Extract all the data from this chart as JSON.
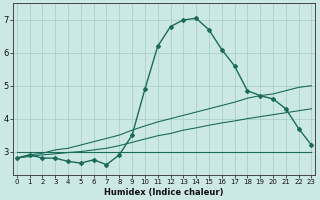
{
  "xlabel": "Humidex (Indice chaleur)",
  "bg_color": "#cce8e4",
  "grid_color": "#aacfcb",
  "line_color": "#1a6b5a",
  "x_ticks": [
    0,
    1,
    2,
    3,
    4,
    5,
    6,
    7,
    8,
    9,
    10,
    11,
    12,
    13,
    14,
    15,
    16,
    17,
    18,
    19,
    20,
    21,
    22,
    23
  ],
  "y_ticks": [
    3,
    4,
    5,
    6,
    7
  ],
  "ylim": [
    2.3,
    7.5
  ],
  "xlim": [
    -0.3,
    23.3
  ],
  "humidex": [
    2.8,
    2.9,
    2.8,
    2.8,
    2.7,
    2.65,
    2.75,
    2.6,
    2.9,
    3.5,
    4.9,
    6.2,
    6.8,
    7.0,
    7.05,
    6.7,
    6.1,
    5.6,
    4.85,
    4.7,
    4.6,
    4.3,
    3.7,
    3.2
  ],
  "trend_high": [
    2.8,
    2.9,
    2.95,
    3.05,
    3.1,
    3.2,
    3.3,
    3.4,
    3.5,
    3.65,
    3.78,
    3.9,
    4.0,
    4.1,
    4.2,
    4.3,
    4.4,
    4.5,
    4.62,
    4.7,
    4.75,
    4.85,
    4.95,
    5.0
  ],
  "trend_low": [
    2.8,
    2.85,
    2.9,
    2.93,
    2.97,
    3.0,
    3.05,
    3.1,
    3.18,
    3.28,
    3.38,
    3.48,
    3.55,
    3.65,
    3.72,
    3.8,
    3.87,
    3.93,
    4.0,
    4.06,
    4.12,
    4.18,
    4.24,
    4.3
  ],
  "flat_y": 3.0,
  "flat_x0": 0,
  "flat_x1": 23
}
